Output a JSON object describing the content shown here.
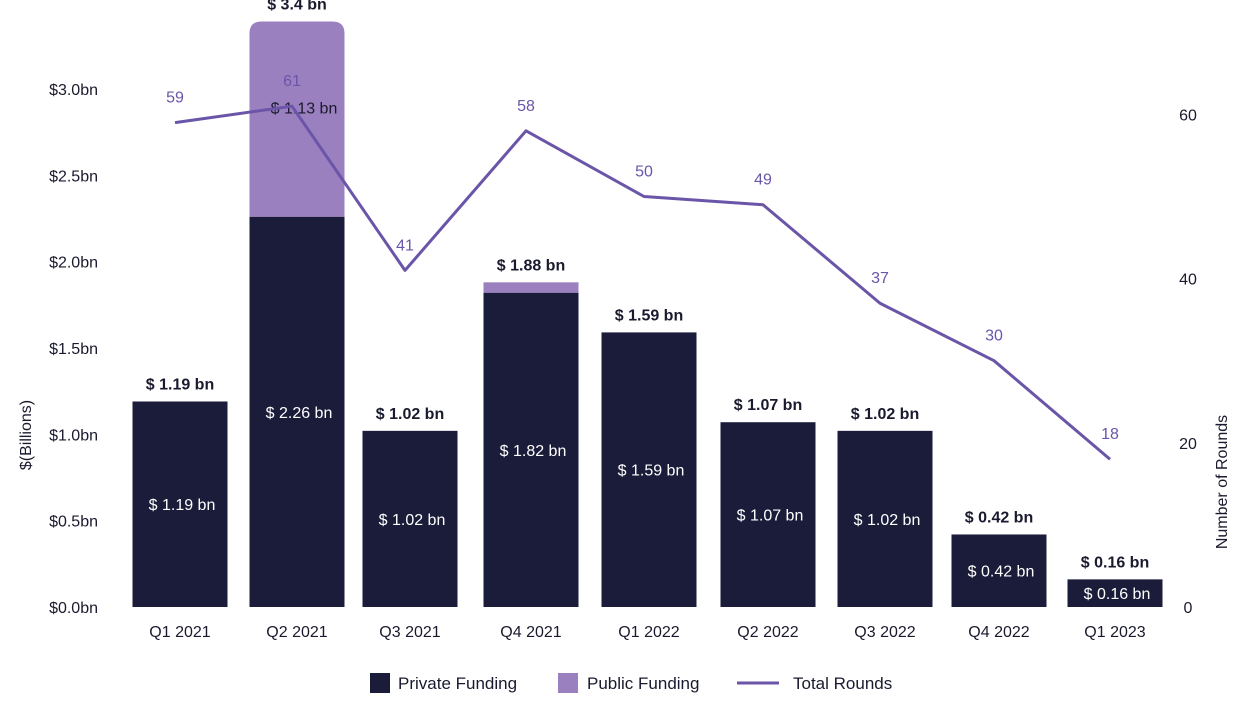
{
  "colors": {
    "private": "#1b1c3a",
    "public": "#9b80bf",
    "line": "#6a55a8",
    "text": "#1a1a2e"
  },
  "chart_data": {
    "type": "bar",
    "categories": [
      "Q1 2021",
      "Q2 2021",
      "Q3 2021",
      "Q4 2021",
      "Q1 2022",
      "Q2 2022",
      "Q3 2022",
      "Q4 2022",
      "Q1 2023"
    ],
    "series": [
      {
        "name": "Private Funding",
        "kind": "bar",
        "axis": "left",
        "values": [
          1.19,
          2.26,
          1.02,
          1.82,
          1.59,
          1.07,
          1.02,
          0.42,
          0.16
        ],
        "labels": [
          "$ 1.19 bn",
          "$ 2.26 bn",
          "$ 1.02 bn",
          "$ 1.82 bn",
          "$ 1.59 bn",
          "$ 1.07 bn",
          "$ 1.02 bn",
          "$ 0.42 bn",
          "$ 0.16 bn"
        ]
      },
      {
        "name": "Public Funding",
        "kind": "bar",
        "axis": "left",
        "values": [
          0,
          1.13,
          0,
          0.06,
          0,
          0,
          0,
          0,
          0
        ],
        "labels": [
          "",
          "$ 1.13 bn",
          "",
          "",
          "",
          "",
          "",
          "",
          ""
        ]
      },
      {
        "name": "Total Rounds",
        "kind": "line",
        "axis": "right",
        "values": [
          59,
          61,
          41,
          58,
          50,
          49,
          37,
          30,
          18
        ],
        "labels": [
          "59",
          "61",
          "41",
          "58",
          "50",
          "49",
          "37",
          "30",
          "18"
        ]
      }
    ],
    "total_labels": [
      "$ 1.19 bn",
      "$ 3.4 bn",
      "$ 1.02 bn",
      "$ 1.88 bn",
      "$ 1.59 bn",
      "$ 1.07 bn",
      "$ 1.02 bn",
      "$ 0.42 bn",
      "$ 0.16 bn"
    ],
    "ylabel": "$(Billions)",
    "y2label": "Number of Rounds",
    "ylim": [
      0,
      3.4
    ],
    "y2lim": [
      0,
      74
    ],
    "yticks": [
      {
        "value": 0.0,
        "label": "$0.0bn"
      },
      {
        "value": 0.5,
        "label": "$0.5bn"
      },
      {
        "value": 1.0,
        "label": "$1.0bn"
      },
      {
        "value": 1.5,
        "label": "$1.5bn"
      },
      {
        "value": 2.0,
        "label": "$2.0bn"
      },
      {
        "value": 2.5,
        "label": "$2.5bn"
      },
      {
        "value": 3.0,
        "label": "$3.0bn"
      }
    ],
    "y2ticks": [
      {
        "value": 0,
        "label": "0"
      },
      {
        "value": 20,
        "label": "20"
      },
      {
        "value": 40,
        "label": "40"
      },
      {
        "value": 60,
        "label": "60"
      }
    ],
    "grid": false,
    "legend_position": "bottom-center"
  }
}
